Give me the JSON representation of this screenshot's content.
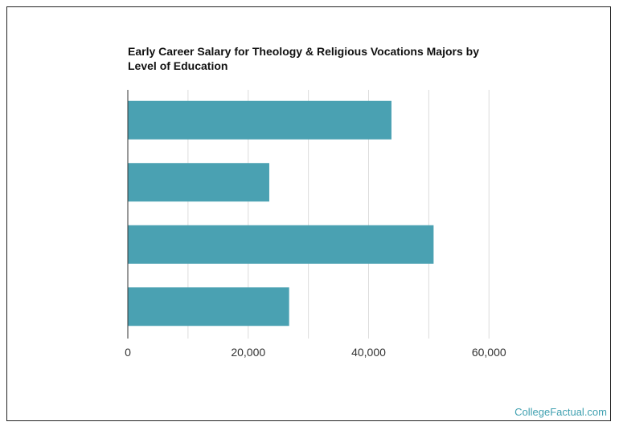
{
  "chart_data": {
    "type": "bar",
    "orientation": "horizontal",
    "title": "Early Career Salary for Theology & Religious Vocations Majors by Level of Education",
    "values": [
      43800,
      23500,
      50800,
      26800
    ],
    "xlim": [
      0,
      80000
    ],
    "xticks": [
      0,
      20000,
      40000,
      60000
    ],
    "xtick_labels": [
      "0",
      "20,000",
      "40,000",
      "60,000"
    ],
    "grid": true,
    "bar_color": "#4aa1b2",
    "grid_color": "#dcdcdc"
  },
  "footer": {
    "credit": "CollegeFactual.com"
  },
  "colors": {
    "credit": "#3fa0b0"
  }
}
